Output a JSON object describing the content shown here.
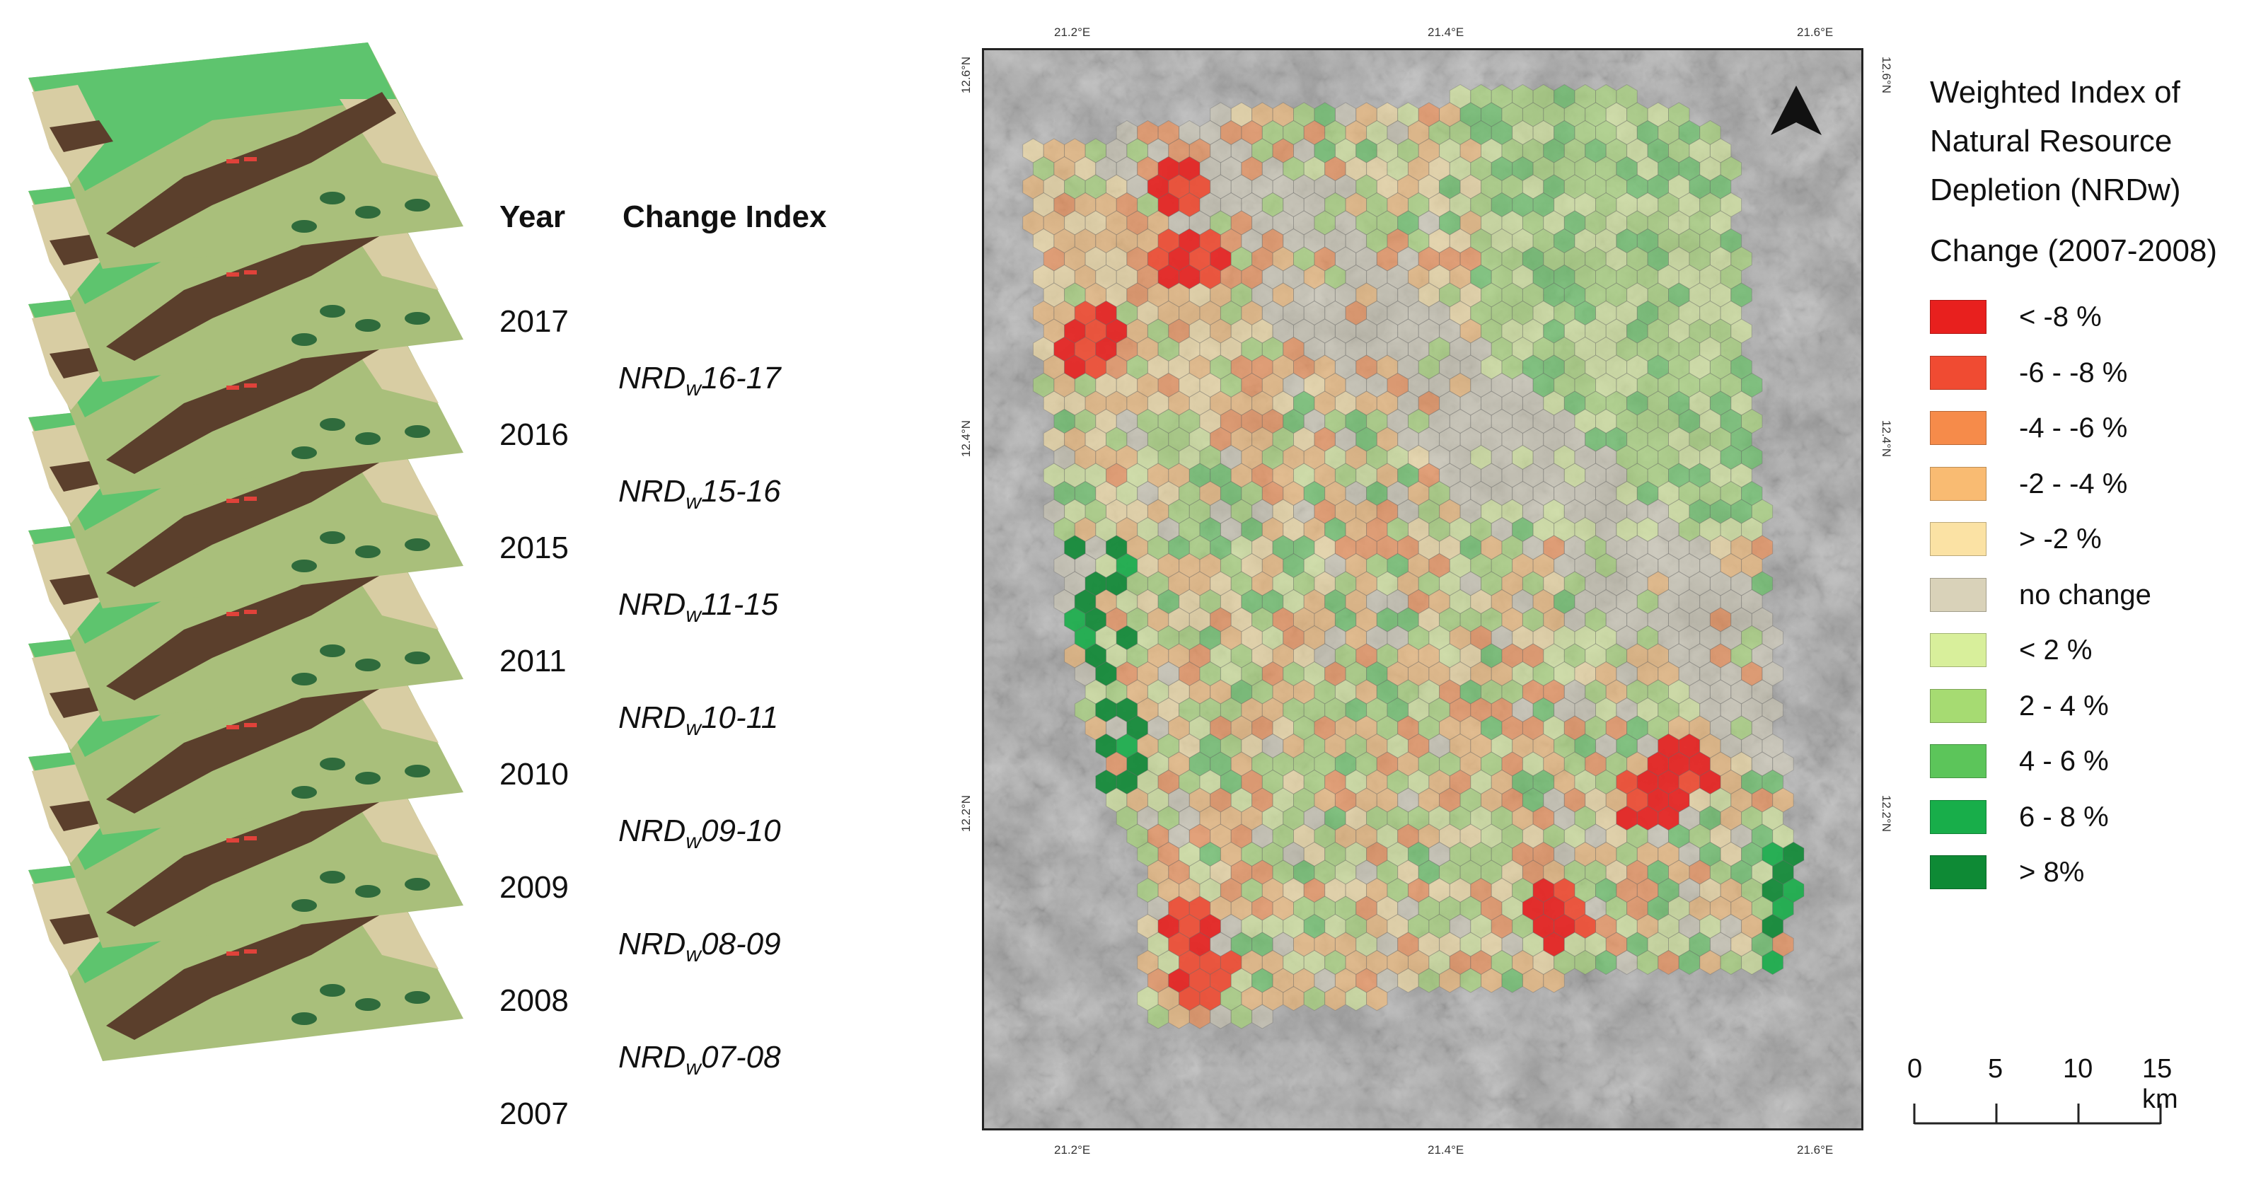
{
  "stack": {
    "header_year": "Year",
    "header_change": "Change Index",
    "years": [
      "2017",
      "2016",
      "2015",
      "2011",
      "2010",
      "2009",
      "2008",
      "2007"
    ],
    "change_indices": [
      {
        "prefix": "NRD",
        "sub": "w",
        "suffix": "16-17"
      },
      {
        "prefix": "NRD",
        "sub": "w",
        "suffix": "15-16"
      },
      {
        "prefix": "NRD",
        "sub": "w",
        "suffix": "11-15"
      },
      {
        "prefix": "NRD",
        "sub": "w",
        "suffix": "10-11"
      },
      {
        "prefix": "NRD",
        "sub": "w",
        "suffix": "09-10"
      },
      {
        "prefix": "NRD",
        "sub": "w",
        "suffix": "08-09"
      },
      {
        "prefix": "NRD",
        "sub": "w",
        "suffix": "07-08"
      }
    ],
    "layer_colors": {
      "light_green": "#5ec46e",
      "olive": "#a9bf7b",
      "tan": "#d8cda3",
      "brown": "#5b3f2c",
      "dark_green": "#2f6b3c",
      "red": "#e0423a"
    }
  },
  "map": {
    "top_ticks": [
      "21.2°E",
      "21.4°E",
      "21.6°E"
    ],
    "bottom_ticks": [
      "21.2°E",
      "21.4°E",
      "21.6°E"
    ],
    "left_ticks": [
      "12.6°N",
      "12.4°N",
      "12.2°N"
    ],
    "right_ticks": [
      "12.6°N",
      "12.4°N",
      "12.2°N"
    ],
    "north_arrow": "north-arrow-icon"
  },
  "legend": {
    "title_lines": [
      "Weighted Index of",
      "Natural Resource",
      "Depletion (NRDw)"
    ],
    "subtitle": "Change (2007-2008)",
    "classes": [
      {
        "label": "< -8 %",
        "color": "#e8201e"
      },
      {
        "label": "-6 - -8 %",
        "color": "#f04b32"
      },
      {
        "label": "-4 - -6 %",
        "color": "#f68b4a"
      },
      {
        "label": "-2 - -4 %",
        "color": "#f9bb72"
      },
      {
        "label": "> -2 %",
        "color": "#fbe2a4"
      },
      {
        "label": "no change",
        "color": "#d9d2b9"
      },
      {
        "label": "< 2 %",
        "color": "#d8ef9b"
      },
      {
        "label": "2 - 4 %",
        "color": "#a6db72"
      },
      {
        "label": "4 - 6 %",
        "color": "#5cc55a"
      },
      {
        "label": "6 - 8 %",
        "color": "#18ae4a"
      },
      {
        "label": "> 8%",
        "color": "#0e8a35"
      }
    ]
  },
  "scalebar": {
    "labels": [
      "0",
      "5",
      "10",
      "15 km"
    ]
  }
}
